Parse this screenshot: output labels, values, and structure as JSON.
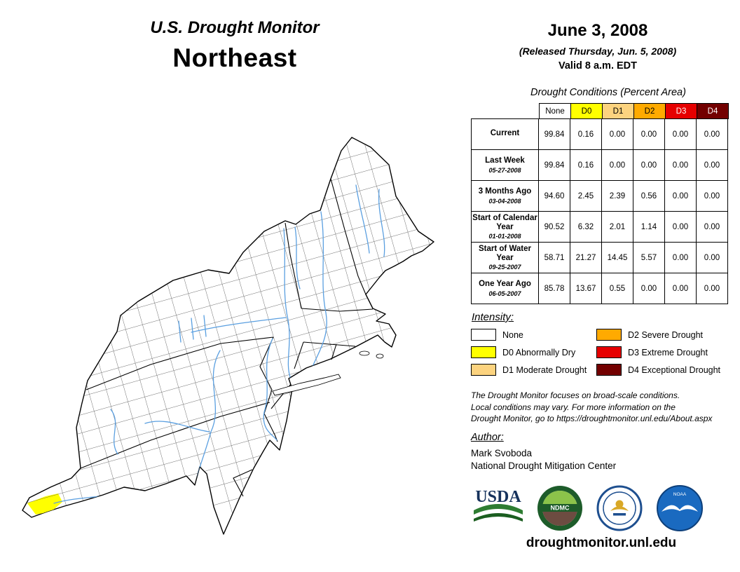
{
  "header": {
    "program": "U.S. Drought Monitor",
    "region": "Northeast",
    "date": "June 3, 2008",
    "released": "(Released Thursday, Jun. 5, 2008)",
    "valid": "Valid 8 a.m. EDT"
  },
  "table": {
    "title": "Drought Conditions (Percent Area)",
    "columns": [
      {
        "label": "None",
        "color": "#FFFFFF",
        "text": "#000000"
      },
      {
        "label": "D0",
        "color": "#FFFF00",
        "text": "#000000"
      },
      {
        "label": "D1",
        "color": "#FCD37F",
        "text": "#000000"
      },
      {
        "label": "D2",
        "color": "#FFAA00",
        "text": "#000000"
      },
      {
        "label": "D3",
        "color": "#E60000",
        "text": "#FFFFFF"
      },
      {
        "label": "D4",
        "color": "#730000",
        "text": "#FFFFFF"
      }
    ],
    "rows": [
      {
        "label": "Current",
        "date": "",
        "values": [
          "99.84",
          "0.16",
          "0.00",
          "0.00",
          "0.00",
          "0.00"
        ]
      },
      {
        "label": "Last Week",
        "date": "05-27-2008",
        "values": [
          "99.84",
          "0.16",
          "0.00",
          "0.00",
          "0.00",
          "0.00"
        ]
      },
      {
        "label": "3 Months Ago",
        "date": "03-04-2008",
        "values": [
          "94.60",
          "2.45",
          "2.39",
          "0.56",
          "0.00",
          "0.00"
        ]
      },
      {
        "label": "Start of Calendar Year",
        "date": "01-01-2008",
        "values": [
          "90.52",
          "6.32",
          "2.01",
          "1.14",
          "0.00",
          "0.00"
        ]
      },
      {
        "label": "Start of Water Year",
        "date": "09-25-2007",
        "values": [
          "58.71",
          "21.27",
          "14.45",
          "5.57",
          "0.00",
          "0.00"
        ]
      },
      {
        "label": "One Year Ago",
        "date": "06-05-2007",
        "values": [
          "85.78",
          "13.67",
          "0.55",
          "0.00",
          "0.00",
          "0.00"
        ]
      }
    ]
  },
  "legend": {
    "title": "Intensity:",
    "items": [
      {
        "label": "None",
        "color": "#FFFFFF"
      },
      {
        "label": "D0 Abnormally Dry",
        "color": "#FFFF00"
      },
      {
        "label": "D1 Moderate Drought",
        "color": "#FCD37F"
      },
      {
        "label": "D2 Severe Drought",
        "color": "#FFAA00"
      },
      {
        "label": "D3 Extreme Drought",
        "color": "#E60000"
      },
      {
        "label": "D4 Exceptional Drought",
        "color": "#730000"
      }
    ]
  },
  "disclaimer": "The Drought Monitor focuses on broad-scale conditions.\nLocal conditions may vary. For more information on the\nDrought Monitor, go to https://droughtmonitor.unl.edu/About.aspx",
  "author": {
    "heading": "Author:",
    "name": "Mark Svoboda",
    "org": "National Drought Mitigation Center"
  },
  "logos": [
    {
      "name": "usda-logo",
      "text": "USDA"
    },
    {
      "name": "ndmc-logo",
      "text": "NDMC"
    },
    {
      "name": "doc-logo",
      "text": ""
    },
    {
      "name": "noaa-logo",
      "text": "NOAA"
    }
  ],
  "footer": {
    "url": "droughtmonitor.unl.edu"
  },
  "map": {
    "background": "#FFFFFF",
    "border_color": "#000000",
    "river_color": "#5A9FE0",
    "d0_color": "#FFFF00"
  }
}
